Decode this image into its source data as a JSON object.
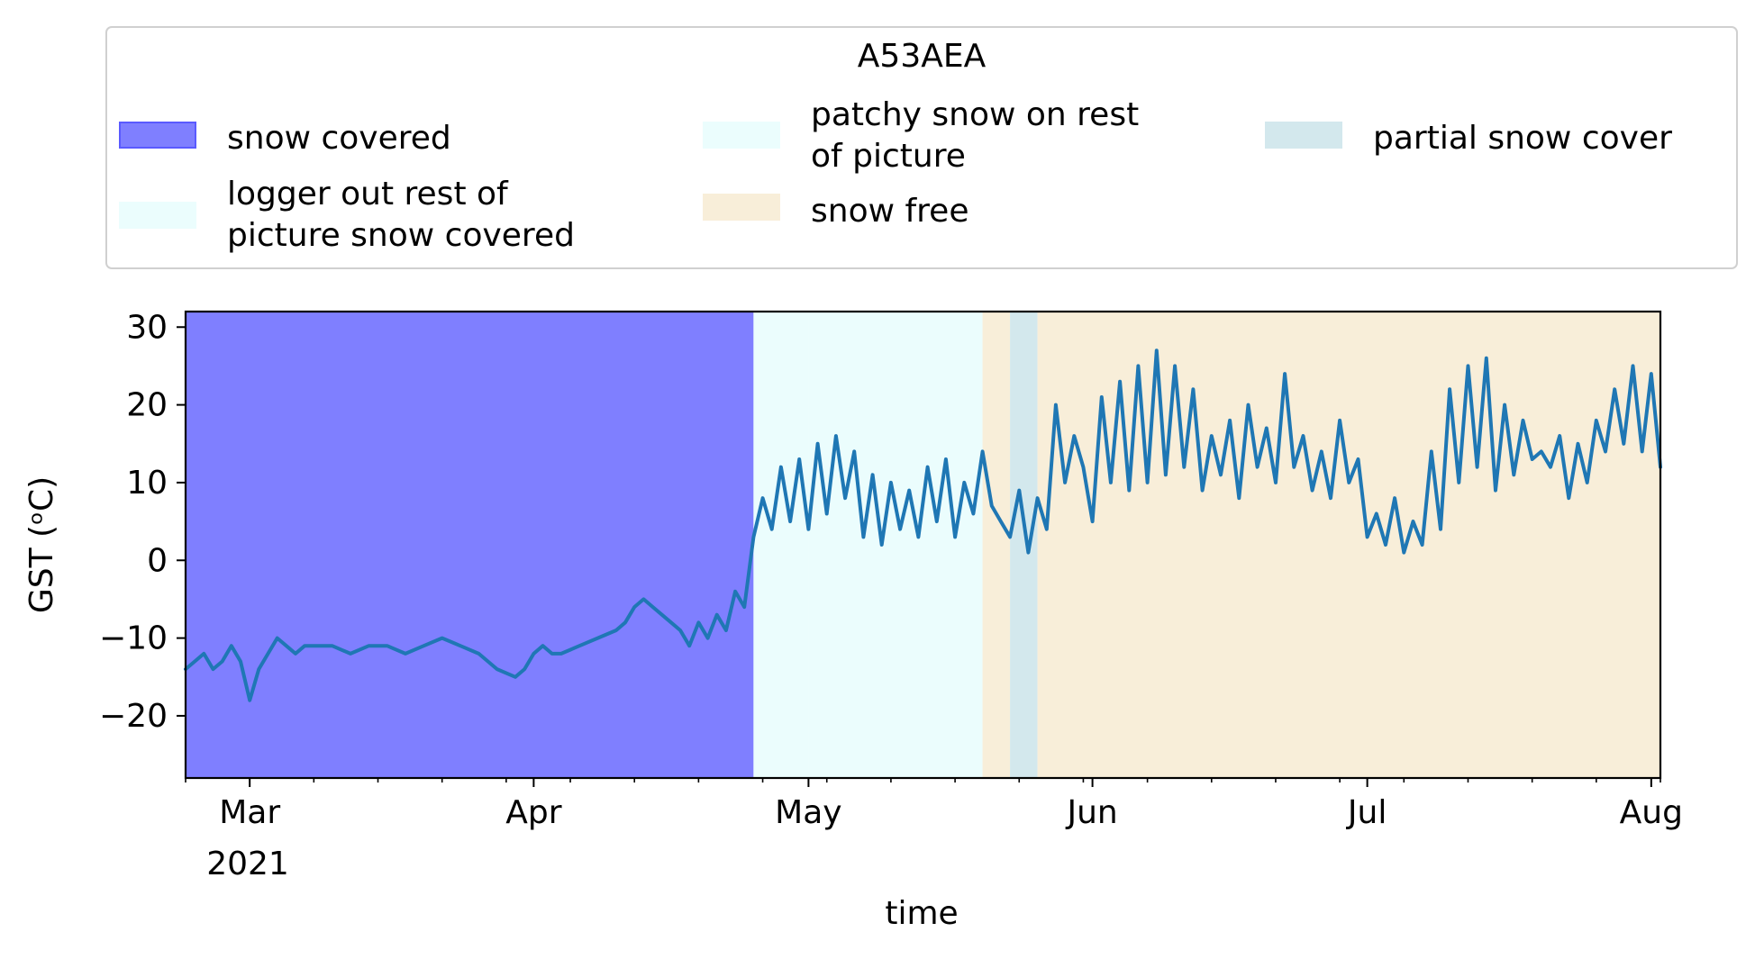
{
  "chart_data": {
    "type": "line",
    "xlabel": "time",
    "ylabel": "GST (ᵒC)",
    "ylim": [
      -28,
      32
    ],
    "xlim": [
      "2021-02-22",
      "2021-08-02"
    ],
    "yticks": [
      30,
      20,
      10,
      0,
      -10,
      -20
    ],
    "ytick_labels": [
      "30",
      "20",
      "10",
      "0",
      "−10",
      "−20"
    ],
    "xticks": [
      {
        "date": "2021-03-01",
        "label": "Mar"
      },
      {
        "date": "2021-04-01",
        "label": "Apr"
      },
      {
        "date": "2021-05-01",
        "label": "May"
      },
      {
        "date": "2021-06-01",
        "label": "Jun"
      },
      {
        "date": "2021-07-01",
        "label": "Jul"
      },
      {
        "date": "2021-08-01",
        "label": "Aug"
      }
    ],
    "year_label": "2021",
    "legend": {
      "title": "A53AEA",
      "placement": "top",
      "entries": [
        {
          "key": "snow_covered",
          "label": "snow covered",
          "color": "#7f7fff"
        },
        {
          "key": "logger_out",
          "label": "logger out rest of picture snow covered",
          "color": "#ebfdfd"
        },
        {
          "key": "patchy",
          "label": "patchy snow on rest of picture",
          "color": "#ebfdfd"
        },
        {
          "key": "snow_free",
          "label": "snow free",
          "color": "#f8eed9"
        },
        {
          "key": "partial",
          "label": "partial snow cover",
          "color": "#d3e8ed"
        }
      ]
    },
    "periods": [
      {
        "key": "snow_covered",
        "start": "2021-02-22",
        "end": "2021-04-25"
      },
      {
        "key": "logger_out",
        "start": "2021-04-25",
        "end": "2021-05-01"
      },
      {
        "key": "patchy",
        "start": "2021-05-01",
        "end": "2021-05-20"
      },
      {
        "key": "snow_free",
        "start": "2021-05-20",
        "end": "2021-05-23"
      },
      {
        "key": "partial",
        "start": "2021-05-23",
        "end": "2021-05-26"
      },
      {
        "key": "snow_free",
        "start": "2021-05-26",
        "end": "2021-08-02"
      }
    ],
    "series": [
      {
        "color": "#1f77b4",
        "x": [
          "2021-02-22",
          "2021-02-23",
          "2021-02-24",
          "2021-02-25",
          "2021-02-26",
          "2021-02-27",
          "2021-02-28",
          "2021-03-01",
          "2021-03-02",
          "2021-03-03",
          "2021-03-04",
          "2021-03-05",
          "2021-03-06",
          "2021-03-07",
          "2021-03-08",
          "2021-03-10",
          "2021-03-12",
          "2021-03-14",
          "2021-03-16",
          "2021-03-18",
          "2021-03-20",
          "2021-03-22",
          "2021-03-24",
          "2021-03-26",
          "2021-03-28",
          "2021-03-30",
          "2021-03-31",
          "2021-04-01",
          "2021-04-02",
          "2021-04-03",
          "2021-04-04",
          "2021-04-06",
          "2021-04-08",
          "2021-04-10",
          "2021-04-11",
          "2021-04-12",
          "2021-04-13",
          "2021-04-14",
          "2021-04-15",
          "2021-04-16",
          "2021-04-17",
          "2021-04-18",
          "2021-04-19",
          "2021-04-20",
          "2021-04-21",
          "2021-04-22",
          "2021-04-23",
          "2021-04-24",
          "2021-04-25",
          "2021-04-26",
          "2021-04-27",
          "2021-04-28",
          "2021-04-29",
          "2021-04-30",
          "2021-05-01",
          "2021-05-02",
          "2021-05-03",
          "2021-05-04",
          "2021-05-05",
          "2021-05-06",
          "2021-05-07",
          "2021-05-08",
          "2021-05-09",
          "2021-05-10",
          "2021-05-11",
          "2021-05-12",
          "2021-05-13",
          "2021-05-14",
          "2021-05-15",
          "2021-05-16",
          "2021-05-17",
          "2021-05-18",
          "2021-05-19",
          "2021-05-20",
          "2021-05-21",
          "2021-05-22",
          "2021-05-23",
          "2021-05-24",
          "2021-05-25",
          "2021-05-26",
          "2021-05-27",
          "2021-05-28",
          "2021-05-29",
          "2021-05-30",
          "2021-05-31",
          "2021-06-01",
          "2021-06-02",
          "2021-06-03",
          "2021-06-04",
          "2021-06-05",
          "2021-06-06",
          "2021-06-07",
          "2021-06-08",
          "2021-06-09",
          "2021-06-10",
          "2021-06-11",
          "2021-06-12",
          "2021-06-13",
          "2021-06-14",
          "2021-06-15",
          "2021-06-16",
          "2021-06-17",
          "2021-06-18",
          "2021-06-19",
          "2021-06-20",
          "2021-06-21",
          "2021-06-22",
          "2021-06-23",
          "2021-06-24",
          "2021-06-25",
          "2021-06-26",
          "2021-06-27",
          "2021-06-28",
          "2021-06-29",
          "2021-06-30",
          "2021-07-01",
          "2021-07-02",
          "2021-07-03",
          "2021-07-04",
          "2021-07-05",
          "2021-07-06",
          "2021-07-07",
          "2021-07-08",
          "2021-07-09",
          "2021-07-10",
          "2021-07-11",
          "2021-07-12",
          "2021-07-13",
          "2021-07-14",
          "2021-07-15",
          "2021-07-16",
          "2021-07-17",
          "2021-07-18",
          "2021-07-19",
          "2021-07-20",
          "2021-07-21",
          "2021-07-22",
          "2021-07-23",
          "2021-07-24",
          "2021-07-25",
          "2021-07-26",
          "2021-07-27",
          "2021-07-28",
          "2021-07-29",
          "2021-07-30",
          "2021-07-31",
          "2021-08-01",
          "2021-08-02"
        ],
        "y": [
          -14,
          -13,
          -12,
          -14,
          -13,
          -11,
          -13,
          -18,
          -14,
          -12,
          -10,
          -11,
          -12,
          -11,
          -11,
          -11,
          -12,
          -11,
          -11,
          -12,
          -11,
          -10,
          -11,
          -12,
          -14,
          -15,
          -14,
          -12,
          -11,
          -12,
          -12,
          -11,
          -10,
          -9,
          -8,
          -6,
          -5,
          -6,
          -7,
          -8,
          -9,
          -11,
          -8,
          -10,
          -7,
          -9,
          -4,
          -6,
          3,
          8,
          4,
          12,
          5,
          13,
          4,
          15,
          6,
          16,
          8,
          14,
          3,
          11,
          2,
          10,
          4,
          9,
          3,
          12,
          5,
          13,
          3,
          10,
          6,
          14,
          7,
          5,
          3,
          9,
          1,
          8,
          4,
          20,
          10,
          16,
          12,
          5,
          21,
          10,
          23,
          9,
          25,
          10,
          27,
          11,
          25,
          12,
          22,
          9,
          16,
          11,
          18,
          8,
          20,
          12,
          17,
          10,
          24,
          12,
          16,
          9,
          14,
          8,
          18,
          10,
          13,
          3,
          6,
          2,
          8,
          1,
          5,
          2,
          14,
          4,
          22,
          10,
          25,
          12,
          26,
          9,
          20,
          11,
          18,
          13,
          14,
          12,
          16,
          8,
          15,
          10,
          18,
          14,
          22,
          15,
          25,
          14,
          24,
          12
        ]
      }
    ]
  }
}
